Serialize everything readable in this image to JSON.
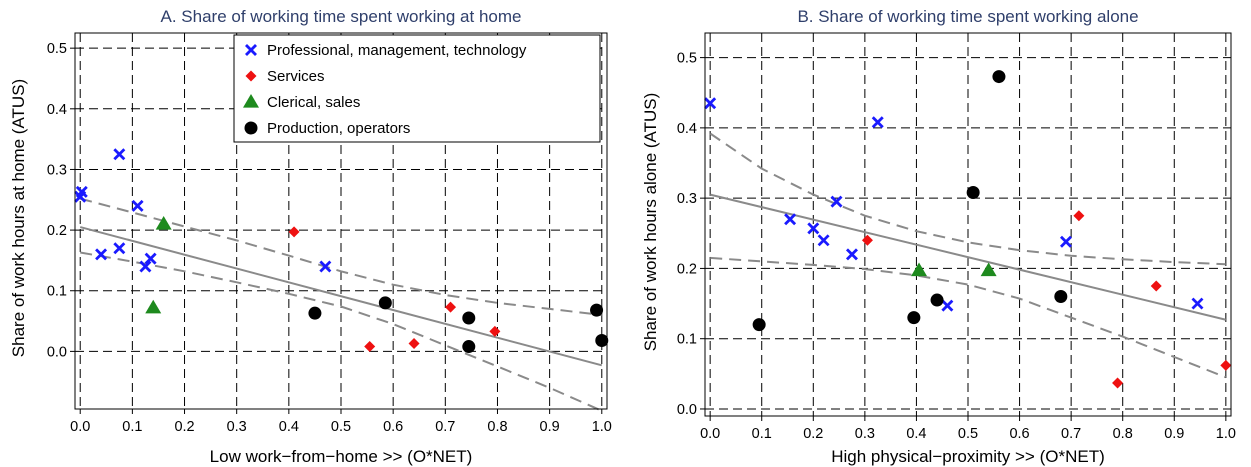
{
  "chart_data": [
    {
      "type": "scatter",
      "title": "A. Share of working time spent working at home",
      "xlabel": "Low work−from−home >>  (O*NET)",
      "ylabel": "Share of work hours at home (ATUS)",
      "xlim": [
        -0.01,
        1.01
      ],
      "ylim": [
        -0.095,
        0.525
      ],
      "xticks": [
        0.0,
        0.1,
        0.2,
        0.3,
        0.4,
        0.5,
        0.6,
        0.7,
        0.8,
        0.9,
        1.0
      ],
      "xtick_labels": [
        "0.0",
        "0.1",
        "0.2",
        "0.3",
        "0.4",
        "0.5",
        "0.6",
        "0.7",
        "0.8",
        "0.9",
        "1.0"
      ],
      "yticks": [
        0.0,
        0.1,
        0.2,
        0.3,
        0.4,
        0.5
      ],
      "ytick_labels": [
        "0.0",
        "0.1",
        "0.2",
        "0.3",
        "0.4",
        "0.5"
      ],
      "grid": true,
      "legend_position": "top-right",
      "series": [
        {
          "name": "Professional, management, technology",
          "marker": "x",
          "color": "#1a1aff",
          "x": [
            0.0,
            0.003,
            0.04,
            0.075,
            0.075,
            0.11,
            0.125,
            0.135,
            0.47
          ],
          "y": [
            0.255,
            0.263,
            0.16,
            0.325,
            0.17,
            0.24,
            0.14,
            0.153,
            0.14
          ]
        },
        {
          "name": "Services",
          "marker": "diamond",
          "color": "#ee1111",
          "x": [
            0.41,
            0.555,
            0.64,
            0.71,
            0.795
          ],
          "y": [
            0.197,
            0.008,
            0.013,
            0.073,
            0.033
          ]
        },
        {
          "name": "Clerical, sales",
          "marker": "triangle",
          "color": "#1e8a1e",
          "x": [
            0.16,
            0.14
          ],
          "y": [
            0.21,
            0.072
          ]
        },
        {
          "name": "Production, operators",
          "marker": "circle",
          "color": "#000000",
          "x": [
            0.45,
            0.585,
            0.745,
            0.745,
            0.99,
            1.0
          ],
          "y": [
            0.063,
            0.08,
            0.055,
            0.008,
            0.068,
            0.018
          ]
        }
      ],
      "fit_line": {
        "x": [
          0.0,
          1.0
        ],
        "y": [
          0.205,
          -0.023
        ]
      },
      "ci_upper": {
        "x": [
          0.0,
          0.1,
          0.2,
          0.3,
          0.4,
          0.5,
          0.6,
          0.7,
          0.8,
          0.9,
          1.0
        ],
        "y": [
          0.252,
          0.229,
          0.206,
          0.183,
          0.158,
          0.132,
          0.11,
          0.093,
          0.08,
          0.07,
          0.06
        ]
      },
      "ci_lower": {
        "x": [
          0.0,
          0.1,
          0.2,
          0.3,
          0.4,
          0.5,
          0.6,
          0.7,
          0.8,
          0.9,
          1.0
        ],
        "y": [
          0.163,
          0.148,
          0.132,
          0.114,
          0.095,
          0.074,
          0.045,
          0.01,
          -0.025,
          -0.06,
          -0.098
        ]
      }
    },
    {
      "type": "scatter",
      "title": "B. Share of working time spent working alone",
      "xlabel": "High physical−proximity >>  (O*NET)",
      "ylabel": "Share of work hours alone (ATUS)",
      "xlim": [
        -0.01,
        1.01
      ],
      "ylim": [
        -0.01,
        0.535
      ],
      "xticks": [
        0.0,
        0.1,
        0.2,
        0.3,
        0.4,
        0.5,
        0.6,
        0.7,
        0.8,
        0.9,
        1.0
      ],
      "xtick_labels": [
        "0.0",
        "0.1",
        "0.2",
        "0.3",
        "0.4",
        "0.5",
        "0.6",
        "0.7",
        "0.8",
        "0.9",
        "1.0"
      ],
      "yticks": [
        0.0,
        0.1,
        0.2,
        0.3,
        0.4,
        0.5
      ],
      "ytick_labels": [
        "0.0",
        "0.1",
        "0.2",
        "0.3",
        "0.4",
        "0.5"
      ],
      "grid": true,
      "legend_position": "none",
      "series": [
        {
          "name": "Professional, management, technology",
          "marker": "x",
          "color": "#1a1aff",
          "x": [
            0.0,
            0.155,
            0.2,
            0.22,
            0.245,
            0.275,
            0.325,
            0.46,
            0.69,
            0.945
          ],
          "y": [
            0.435,
            0.27,
            0.257,
            0.24,
            0.295,
            0.22,
            0.408,
            0.147,
            0.238,
            0.15
          ]
        },
        {
          "name": "Services",
          "marker": "diamond",
          "color": "#ee1111",
          "x": [
            0.305,
            0.715,
            0.79,
            0.865,
            1.0
          ],
          "y": [
            0.24,
            0.275,
            0.037,
            0.175,
            0.062
          ]
        },
        {
          "name": "Clerical, sales",
          "marker": "triangle",
          "color": "#1e8a1e",
          "x": [
            0.405,
            0.54
          ],
          "y": [
            0.197,
            0.197
          ]
        },
        {
          "name": "Production, operators",
          "marker": "circle",
          "color": "#000000",
          "x": [
            0.095,
            0.395,
            0.44,
            0.51,
            0.56,
            0.68
          ],
          "y": [
            0.12,
            0.13,
            0.155,
            0.308,
            0.473,
            0.16
          ]
        }
      ],
      "fit_line": {
        "x": [
          0.0,
          1.0
        ],
        "y": [
          0.305,
          0.127
        ]
      },
      "ci_upper": {
        "x": [
          0.0,
          0.1,
          0.2,
          0.3,
          0.4,
          0.5,
          0.6,
          0.7,
          0.8,
          0.9,
          1.0
        ],
        "y": [
          0.392,
          0.342,
          0.305,
          0.275,
          0.253,
          0.237,
          0.226,
          0.218,
          0.213,
          0.209,
          0.206
        ]
      },
      "ci_lower": {
        "x": [
          0.0,
          0.1,
          0.2,
          0.3,
          0.4,
          0.5,
          0.6,
          0.7,
          0.8,
          0.9,
          1.0
        ],
        "y": [
          0.215,
          0.21,
          0.205,
          0.199,
          0.19,
          0.177,
          0.157,
          0.13,
          0.103,
          0.074,
          0.045
        ]
      }
    }
  ]
}
